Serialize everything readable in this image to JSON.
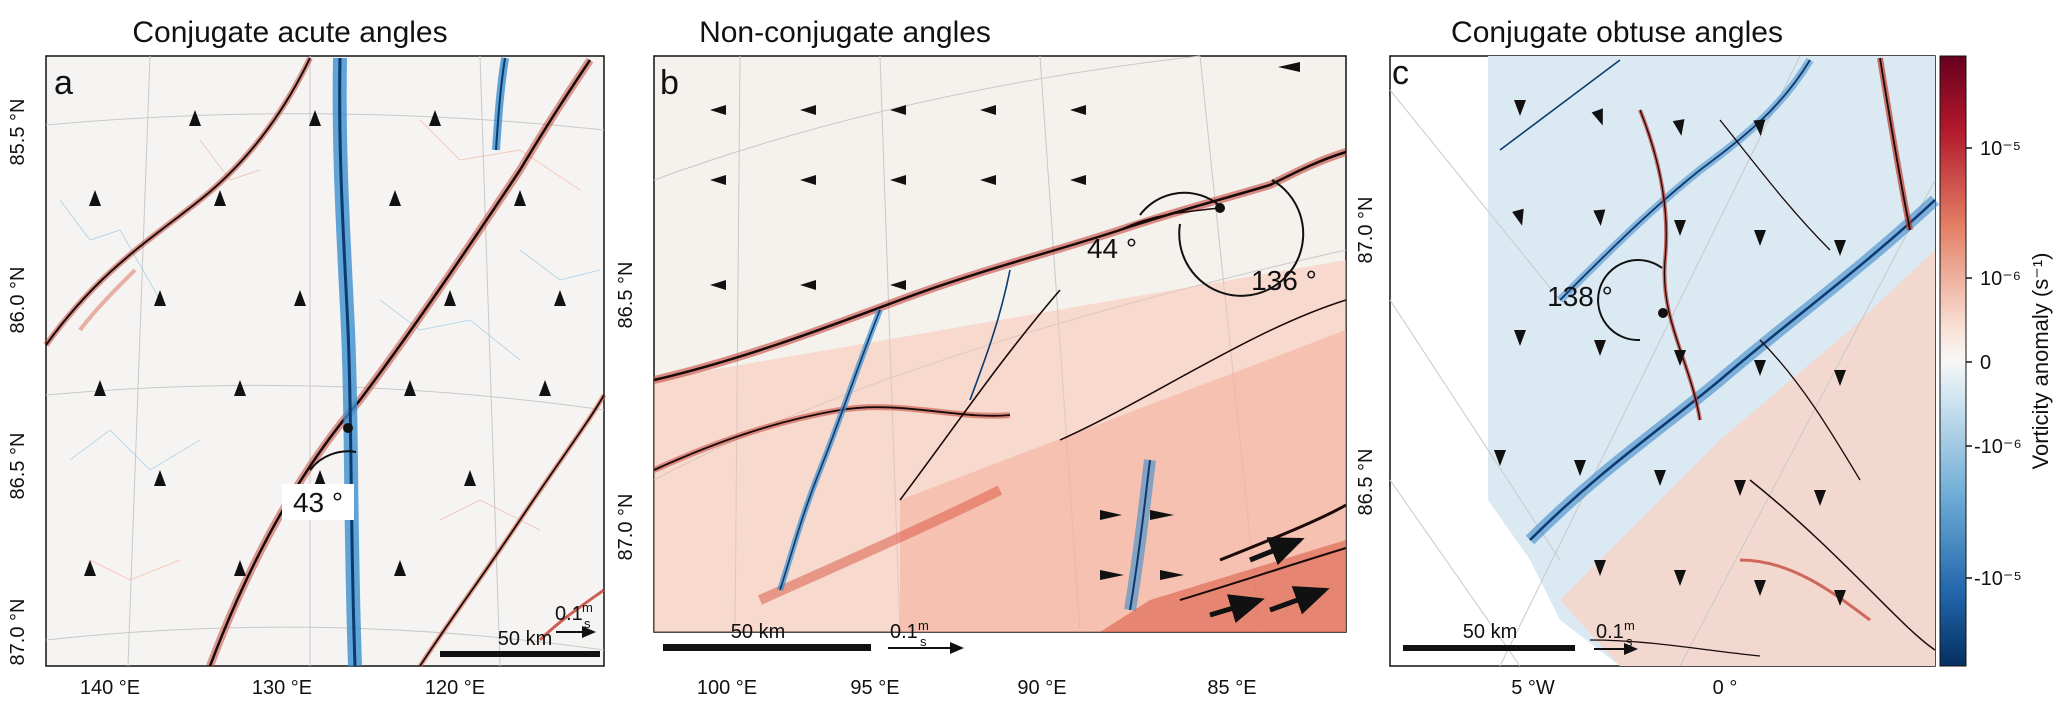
{
  "chart_data": [
    {
      "type": "heatmap",
      "panel_letter": "a",
      "title": "Conjugate acute angles",
      "x_ticks": [
        "140 °E",
        "130 °E",
        "120 °E"
      ],
      "y_ticks": [
        "85.5 °N",
        "86.0 °N",
        "86.5 °N",
        "87.0 °N"
      ],
      "angles": [
        {
          "label": "43 °",
          "value_deg": 43
        }
      ],
      "scale_bar": "50 km",
      "velocity_scale": "0.1",
      "velocity_scale_unit_top": "m",
      "velocity_scale_unit_bottom": "s"
    },
    {
      "type": "heatmap",
      "panel_letter": "b",
      "title": "Non-conjugate angles",
      "x_ticks": [
        "100 °E",
        "95 °E",
        "90 °E",
        "85 °E"
      ],
      "y_ticks": [
        "86.5 °N",
        "87.0 °N"
      ],
      "angles": [
        {
          "label": "44 °",
          "value_deg": 44
        },
        {
          "label": "136 °",
          "value_deg": 136
        }
      ],
      "scale_bar": "50 km",
      "velocity_scale": "0.1",
      "velocity_scale_unit_top": "m",
      "velocity_scale_unit_bottom": "s"
    },
    {
      "type": "heatmap",
      "panel_letter": "c",
      "title": "Conjugate obtuse angles",
      "x_ticks": [
        "5 °W",
        "0 °"
      ],
      "y_ticks": [
        "87.0 °N",
        "86.5 °N"
      ],
      "angles": [
        {
          "label": "138 °",
          "value_deg": 138
        }
      ],
      "scale_bar": "50 km",
      "velocity_scale": "0.1",
      "velocity_scale_unit_top": "m",
      "velocity_scale_unit_bottom": "s"
    }
  ],
  "colorbar": {
    "title": "Vorticity anomaly (s⁻¹)",
    "ticks": [
      "10⁻⁵",
      "10⁻⁶",
      "0",
      "-10⁻⁶",
      "-10⁻⁵"
    ],
    "colors": {
      "positive_strong": "#67001f",
      "positive_mid": "#d6604d",
      "positive_light": "#f4a582",
      "neutral": "#f7f7f7",
      "negative_light": "#92c5de",
      "negative_mid": "#4393c3",
      "negative_strong": "#053061"
    }
  }
}
